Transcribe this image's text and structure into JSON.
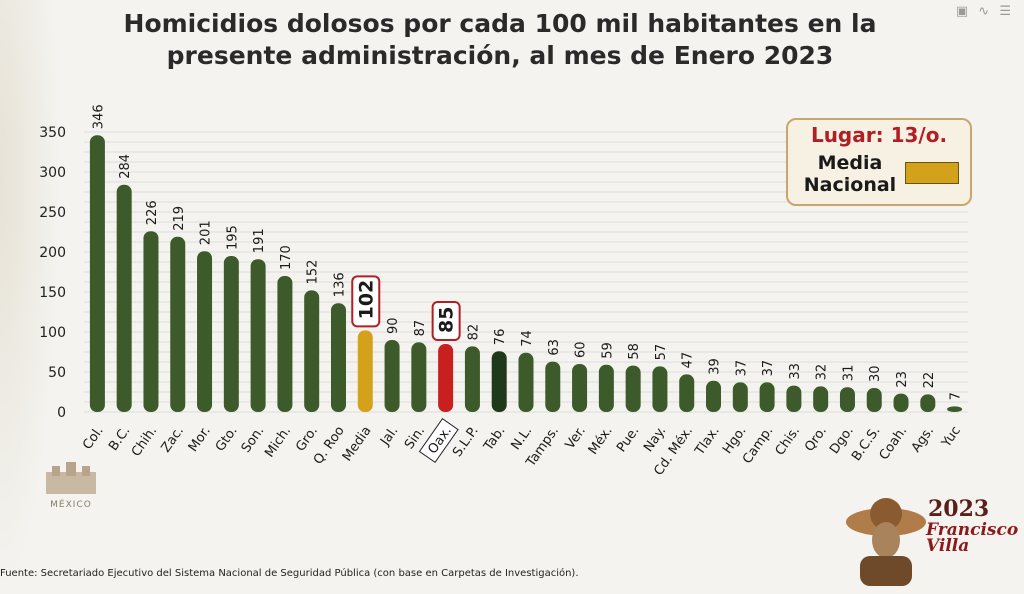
{
  "status_bar": {
    "icons": "▣  ∿  ☰"
  },
  "title": "Homicidios dolosos por cada 100 mil habitantes en la presente administración, al mes de Enero 2023",
  "legend": {
    "rank": "Lugar: 13/o.",
    "label": "Media\nNacional",
    "swatch_color": "#d4a21a"
  },
  "source": "Fuente:  Secretariado Ejecutivo del Sistema Nacional de Seguridad Pública (con base en Carpetas de Investigación).",
  "logo_left": {
    "text": "MÉXICO",
    "icon": "government-seal-icon"
  },
  "year_logo": {
    "year": "2023",
    "name": "Francisco\nVilla",
    "icon": "francisco-villa-portrait-icon"
  },
  "chart_data": {
    "type": "bar",
    "title": "Homicidios dolosos por cada 100 mil habitantes en la presente administración, al mes de Enero 2023",
    "categories": [
      "Col.",
      "B.C.",
      "Chih.",
      "Zac.",
      "Mor.",
      "Gto.",
      "Son.",
      "Mich.",
      "Gro.",
      "Q. Roo",
      "Media",
      "Jal.",
      "Sin.",
      "Oax.",
      "S.L.P.",
      "Tab.",
      "N.L.",
      "Tamps.",
      "Ver.",
      "Méx.",
      "Pue.",
      "Nay.",
      "Cd. Méx.",
      "Tlax.",
      "Hgo.",
      "Camp.",
      "Chis.",
      "Qro.",
      "Dgo.",
      "B.C.S.",
      "Coah.",
      "Ags.",
      "Yuc"
    ],
    "values": [
      346,
      284,
      226,
      219,
      201,
      195,
      191,
      170,
      152,
      136,
      102,
      90,
      87,
      85,
      82,
      76,
      74,
      63,
      60,
      59,
      58,
      57,
      47,
      39,
      37,
      37,
      33,
      32,
      31,
      30,
      23,
      22,
      7
    ],
    "value_labels": [
      "346",
      "284",
      "226",
      "219",
      "201",
      "195",
      "191",
      "170",
      "152",
      "136",
      "102",
      "90",
      "87",
      "85",
      "82",
      "76",
      "74",
      "63",
      "60",
      "59",
      "58",
      "57",
      "47",
      "39",
      "37",
      "37",
      "33",
      "32",
      "31",
      "30",
      "23",
      "22",
      "7"
    ],
    "highlighted": {
      "Media": "#d4a21a",
      "Oax.": "#c8201e",
      "Tab.": "#1f3a1a"
    },
    "boxed_labels": [
      "Media",
      "Oax."
    ],
    "boxed_category": "Oax.",
    "bar_color": "#3d5a2a",
    "ylim": [
      0,
      350
    ],
    "yticks": [
      0,
      50,
      100,
      150,
      200,
      250,
      300,
      350
    ],
    "grid": true,
    "legend_position": "top-right"
  }
}
